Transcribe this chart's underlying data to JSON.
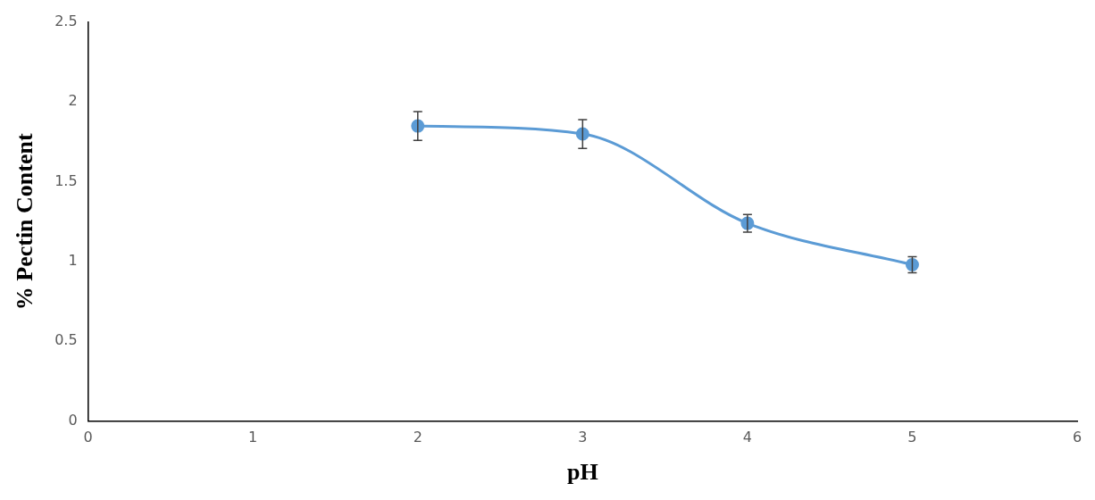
{
  "chart_data": {
    "type": "line",
    "xlabel": "pH",
    "ylabel": "% Pectin Content",
    "x": [
      2,
      3,
      4,
      5
    ],
    "series": [
      {
        "color": "#5b9bd5",
        "values": [
          1.85,
          1.8,
          1.24,
          0.98
        ],
        "errors": [
          0.09,
          0.09,
          0.055,
          0.05
        ]
      }
    ],
    "xlim": [
      0,
      6
    ],
    "xticks": [
      0,
      1,
      2,
      3,
      4,
      5,
      6
    ],
    "ylim": [
      0,
      2.5
    ],
    "yticks": [
      0,
      0.5,
      1,
      1.5,
      2,
      2.5
    ],
    "grid": false,
    "legend": false,
    "marker": "circle",
    "line_style": "solid"
  }
}
